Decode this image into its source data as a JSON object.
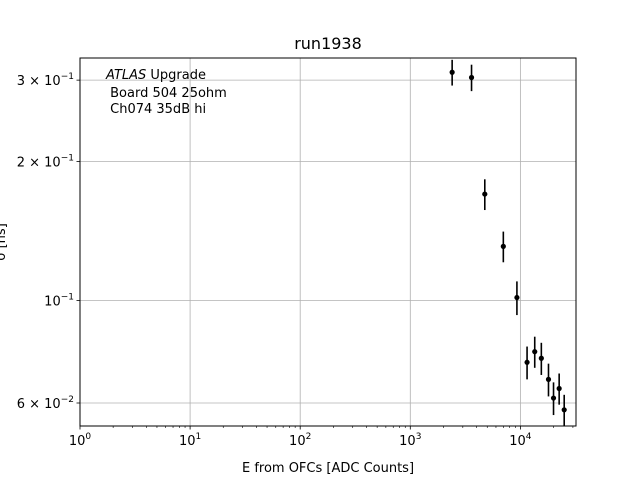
{
  "chart_data": {
    "type": "scatter",
    "title": "run1938",
    "xlabel": "E from OFCs [ADC Counts]",
    "ylabel": "σ [ns]",
    "xscale": "log",
    "yscale": "log",
    "xlim": [
      1,
      32000
    ],
    "ylim": [
      0.0535,
      0.335
    ],
    "grid": true,
    "annotation": {
      "atlas": "ATLAS",
      "atlas_suffix": " Upgrade",
      "line2": " Board 504 25ohm",
      "line3": " Ch074 35dB hi"
    },
    "xticks": [
      {
        "value": 1,
        "base": "10",
        "exp": "0"
      },
      {
        "value": 10,
        "base": "10",
        "exp": "1"
      },
      {
        "value": 100,
        "base": "10",
        "exp": "2"
      },
      {
        "value": 1000,
        "base": "10",
        "exp": "3"
      },
      {
        "value": 10000,
        "base": "10",
        "exp": "4"
      }
    ],
    "yticks": [
      {
        "value": 0.06,
        "mant": "6 × 10",
        "exp": "−2"
      },
      {
        "value": 0.1,
        "mant": "10",
        "exp": "−1"
      },
      {
        "value": 0.2,
        "mant": "2 × 10",
        "exp": "−1"
      },
      {
        "value": 0.3,
        "mant": "3 × 10",
        "exp": "−1"
      }
    ],
    "points": [
      {
        "x": 2400,
        "y": 0.312,
        "yerr": 0.02
      },
      {
        "x": 3600,
        "y": 0.304,
        "yerr": 0.02
      },
      {
        "x": 4750,
        "y": 0.17,
        "yerr": 0.013
      },
      {
        "x": 7000,
        "y": 0.131,
        "yerr": 0.01
      },
      {
        "x": 9300,
        "y": 0.1015,
        "yerr": 0.0085
      },
      {
        "x": 11500,
        "y": 0.0735,
        "yerr": 0.006
      },
      {
        "x": 13500,
        "y": 0.0775,
        "yerr": 0.006
      },
      {
        "x": 15500,
        "y": 0.075,
        "yerr": 0.006
      },
      {
        "x": 18000,
        "y": 0.0675,
        "yerr": 0.0055
      },
      {
        "x": 20000,
        "y": 0.0615,
        "yerr": 0.005
      },
      {
        "x": 22500,
        "y": 0.0645,
        "yerr": 0.005
      },
      {
        "x": 25000,
        "y": 0.058,
        "yerr": 0.0045
      }
    ]
  }
}
